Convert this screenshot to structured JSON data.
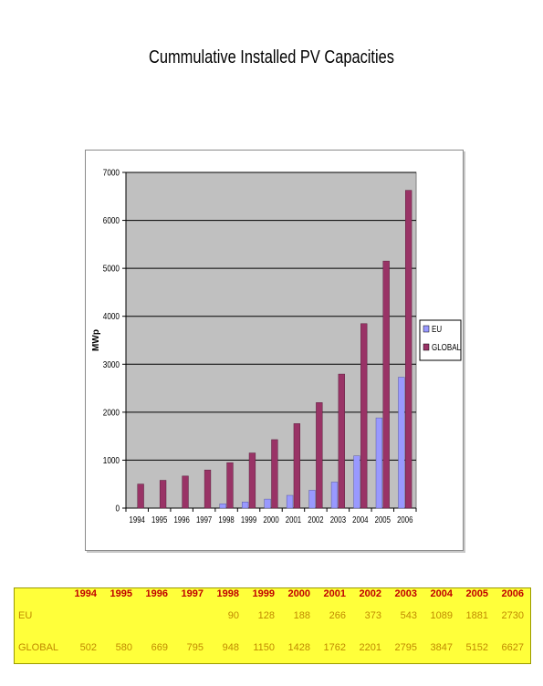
{
  "chart_data": {
    "type": "bar",
    "title": "Cummulative Installed PV Capacities",
    "ylabel": "MWp",
    "xlabel": "",
    "ylim": [
      0,
      7000
    ],
    "yticks": [
      0,
      1000,
      2000,
      3000,
      4000,
      5000,
      6000,
      7000
    ],
    "grid": true,
    "legend_position": "right",
    "categories": [
      "1994",
      "1995",
      "1996",
      "1997",
      "1998",
      "1999",
      "2000",
      "2001",
      "2002",
      "2003",
      "2004",
      "2005",
      "2006"
    ],
    "series": [
      {
        "name": "EU",
        "color": "#9999ff",
        "values": [
          null,
          null,
          null,
          null,
          90,
          128,
          188,
          266,
          373,
          543,
          1089,
          1881,
          2730
        ]
      },
      {
        "name": "GLOBAL",
        "color": "#993366",
        "values": [
          502,
          580,
          669,
          795,
          948,
          1150,
          1428,
          1762,
          2201,
          2795,
          3847,
          5152,
          6627
        ]
      }
    ],
    "plot_area_color": "#c0c0c0"
  },
  "table": {
    "headers": [
      "1994",
      "1995",
      "1996",
      "1997",
      "1998",
      "1999",
      "2000",
      "2001",
      "2002",
      "2003",
      "2004",
      "2005",
      "2006"
    ],
    "rows": [
      {
        "name": "EU",
        "values": [
          "",
          "",
          "",
          "",
          "90",
          "128",
          "188",
          "266",
          "373",
          "543",
          "1089",
          "1881",
          "2730"
        ]
      },
      {
        "name": "GLOBAL",
        "values": [
          "502",
          "580",
          "669",
          "795",
          "948",
          "1150",
          "1428",
          "1762",
          "2201",
          "2795",
          "3847",
          "5152",
          "6627"
        ]
      }
    ],
    "background": "#ffff3a",
    "header_color": "#c00000",
    "value_color": "#c08a00"
  }
}
